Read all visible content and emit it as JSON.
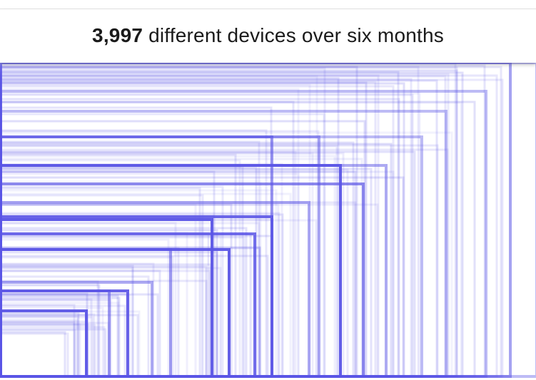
{
  "header": {
    "count": "3,997",
    "text": "different devices over six months"
  },
  "colors": {
    "rect_stroke": "#5b55e6",
    "background": "#ffffff"
  },
  "chart_data": {
    "type": "rectangles",
    "count": 3997,
    "unit": "px",
    "anchor": "bottom-left",
    "dimensions": [
      {
        "w": 120,
        "h": 92,
        "o": 0.95
      },
      {
        "w": 152,
        "h": 120,
        "o": 0.6
      },
      {
        "w": 178,
        "h": 120,
        "o": 0.92
      },
      {
        "w": 212,
        "h": 132,
        "o": 0.5
      },
      {
        "w": 238,
        "h": 178,
        "o": 0.6
      },
      {
        "w": 296,
        "h": 220,
        "o": 0.95
      },
      {
        "w": 320,
        "h": 178,
        "o": 0.95
      },
      {
        "w": 356,
        "h": 200,
        "o": 0.85
      },
      {
        "w": 380,
        "h": 224,
        "o": 0.9
      },
      {
        "w": 380,
        "h": 336,
        "o": 0.6
      },
      {
        "w": 432,
        "h": 244,
        "o": 0.5
      },
      {
        "w": 446,
        "h": 336,
        "o": 0.5
      },
      {
        "w": 476,
        "h": 296,
        "o": 0.95
      },
      {
        "w": 508,
        "h": 270,
        "o": 0.7
      },
      {
        "w": 540,
        "h": 296,
        "o": 0.5
      },
      {
        "w": 590,
        "h": 336,
        "o": 0.4
      },
      {
        "w": 624,
        "h": 372,
        "o": 0.4
      },
      {
        "w": 680,
        "h": 400,
        "o": 0.4
      },
      {
        "w": 714,
        "h": 440,
        "o": 0.55
      },
      {
        "w": 751,
        "h": 440,
        "o": 0.4
      }
    ]
  }
}
